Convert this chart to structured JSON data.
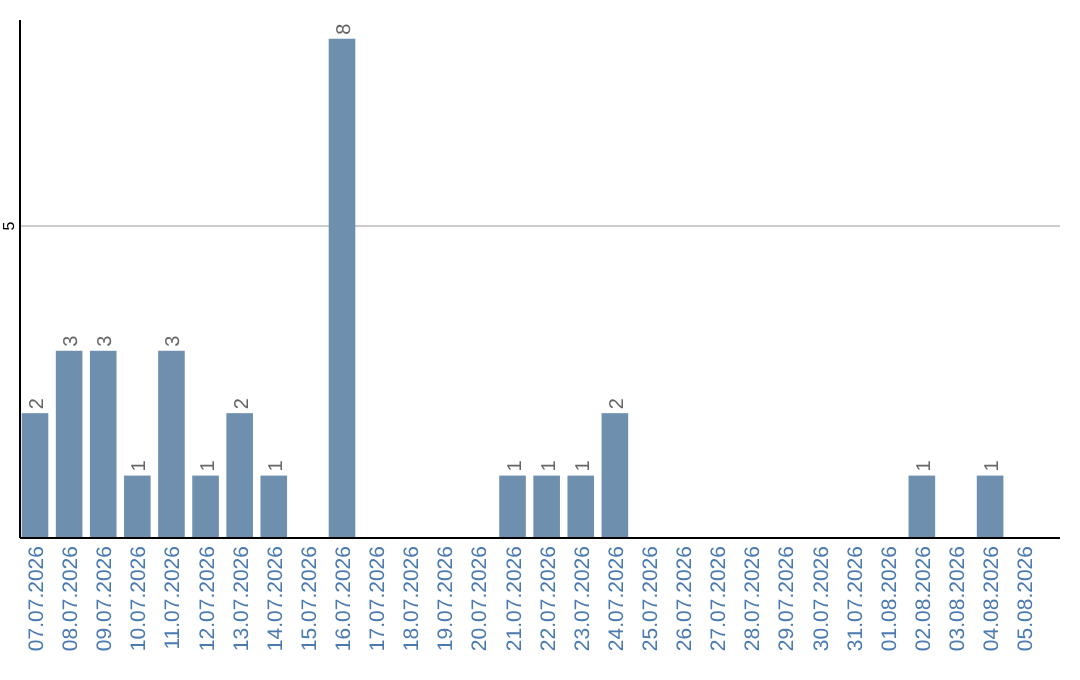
{
  "chart_data": {
    "type": "bar",
    "categories": [
      "07.07.2026",
      "08.07.2026",
      "09.07.2026",
      "10.07.2026",
      "11.07.2026",
      "12.07.2026",
      "13.07.2026",
      "14.07.2026",
      "15.07.2026",
      "16.07.2026",
      "17.07.2026",
      "18.07.2026",
      "19.07.2026",
      "20.07.2026",
      "21.07.2026",
      "22.07.2026",
      "23.07.2026",
      "24.07.2026",
      "25.07.2026",
      "26.07.2026",
      "27.07.2026",
      "28.07.2026",
      "29.07.2026",
      "30.07.2026",
      "31.07.2026",
      "01.08.2026",
      "02.08.2026",
      "03.08.2026",
      "04.08.2026",
      "05.08.2026"
    ],
    "values": [
      2,
      3,
      3,
      1,
      3,
      1,
      2,
      1,
      0,
      8,
      0,
      0,
      0,
      0,
      1,
      1,
      1,
      2,
      0,
      0,
      0,
      0,
      0,
      0,
      0,
      0,
      1,
      0,
      1,
      0
    ],
    "value_labels": [
      "2",
      "3",
      "3",
      "1",
      "3",
      "1",
      "2",
      "1",
      null,
      "8",
      null,
      null,
      null,
      null,
      "1",
      "1",
      "1",
      "2",
      null,
      null,
      null,
      null,
      null,
      null,
      null,
      null,
      "1",
      null,
      "1",
      null
    ],
    "color": "#6f8fae",
    "ylim": [
      0,
      8.3
    ],
    "yticks": [
      5
    ],
    "grid": "y"
  }
}
